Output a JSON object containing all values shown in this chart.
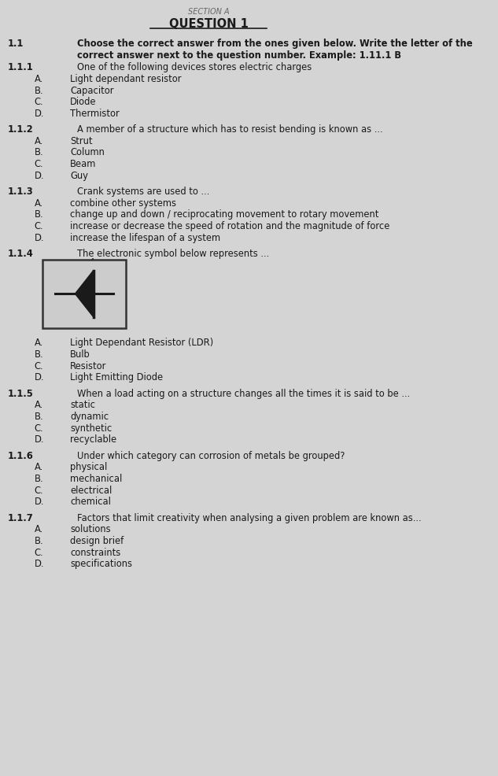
{
  "bg_color": "#d4d4d4",
  "text_color": "#1a1a1a",
  "section_label": "SECTION A",
  "title": "QUESTION 1",
  "question_1_1": "1.1",
  "question_1_1_line1": "Choose the correct answer from the ones given below. Write the letter of the",
  "question_1_1_line2": "correct answer next to the question number. Example: 1.11.1 B",
  "questions": [
    {
      "number": "1.1.1",
      "text": "One of the following devices stores electric charges",
      "options": [
        "A.",
        "B.",
        "C.",
        "D."
      ],
      "answers": [
        "Light dependant resistor",
        "Capacitor",
        "Diode",
        "Thermistor"
      ],
      "has_symbol": false
    },
    {
      "number": "1.1.2",
      "text": "A member of a structure which has to resist bending is known as ...",
      "options": [
        "A.",
        "B.",
        "C.",
        "D."
      ],
      "answers": [
        "Strut",
        "Column",
        "Beam",
        "Guy"
      ],
      "has_symbol": false
    },
    {
      "number": "1.1.3",
      "text": "Crank systems are used to ...",
      "options": [
        "A.",
        "B.",
        "C.",
        "D."
      ],
      "answers": [
        "combine other systems",
        "change up and down / reciprocating movement to rotary movement",
        "increase or decrease the speed of rotation and the magnitude of force",
        "increase the lifespan of a system"
      ],
      "has_symbol": false
    },
    {
      "number": "1.1.4",
      "text": "The electronic symbol below represents ...",
      "options": [
        "A.",
        "B.",
        "C.",
        "D."
      ],
      "answers": [
        "Light Dependant Resistor (LDR)",
        "Bulb",
        "Resistor",
        "Light Emitting Diode"
      ],
      "has_symbol": true
    },
    {
      "number": "1.1.5",
      "text": "When a load acting on a structure changes all the times it is said to be ...",
      "options": [
        "A.",
        "B.",
        "C.",
        "D."
      ],
      "answers": [
        "static",
        "dynamic",
        "synthetic",
        "recyclable"
      ],
      "has_symbol": false
    },
    {
      "number": "1.1.6",
      "text": "Under which category can corrosion of metals be grouped?",
      "options": [
        "A.",
        "B.",
        "C.",
        "D."
      ],
      "answers": [
        "physical",
        "mechanical",
        "electrical",
        "chemical"
      ],
      "has_symbol": false
    },
    {
      "number": "1.1.7",
      "text": "Factors that limit creativity when analysing a given problem are known as...",
      "options": [
        "A.",
        "B.",
        "C.",
        "D."
      ],
      "answers": [
        "solutions",
        "design brief",
        "constraints",
        "specifications"
      ],
      "has_symbol": false
    }
  ]
}
